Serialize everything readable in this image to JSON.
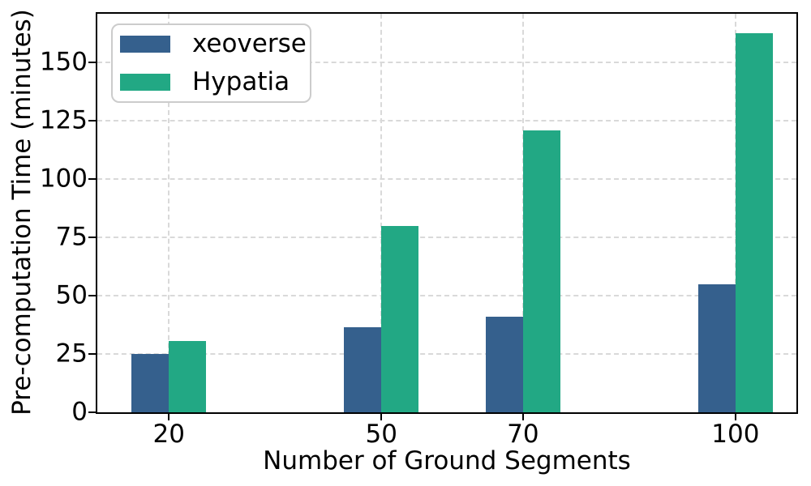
{
  "figure": {
    "background": "#ffffff",
    "text_color": "#000000",
    "spine_color": "#000000",
    "gridline_color": "#d9d9d9"
  },
  "chart_data": {
    "type": "bar",
    "title": "",
    "xlabel": "Number of Ground Segments",
    "ylabel": "Pre-computation Time (minutes)",
    "categories": [
      20,
      50,
      70,
      100
    ],
    "xtick_labels": [
      "20",
      "50",
      "70",
      "100"
    ],
    "yticks": [
      0,
      25,
      50,
      75,
      100,
      125,
      150
    ],
    "xlim": [
      9.9,
      108.6
    ],
    "ylim": [
      0,
      171
    ],
    "bar_width_units": 5.3,
    "grid": {
      "horizontal": true,
      "vertical": true,
      "style": "dashed"
    },
    "legend": {
      "position": "upper-left",
      "entries": [
        "xeoverse",
        "Hypatia"
      ]
    },
    "series": [
      {
        "name": "xeoverse",
        "color": "#35608d",
        "values": [
          25,
          36.5,
          41,
          55
        ]
      },
      {
        "name": "Hypatia",
        "color": "#22a884",
        "values": [
          30.5,
          80,
          121,
          162.5
        ]
      }
    ]
  }
}
